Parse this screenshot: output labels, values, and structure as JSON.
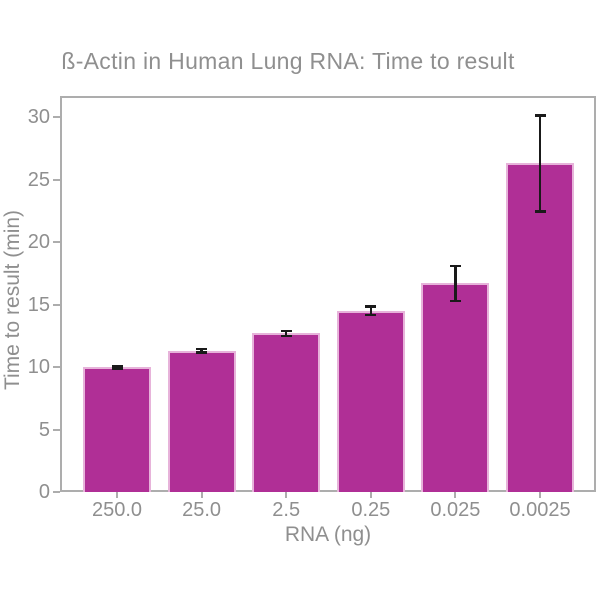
{
  "chart_data": {
    "type": "bar",
    "title": "ß-Actin in Human Lung RNA: Time to result",
    "xlabel": "RNA (ng)",
    "ylabel": "Time to result (min)",
    "categories": [
      "250.0",
      "25.0",
      "2.5",
      "0.25",
      "0.025",
      "0.0025"
    ],
    "values": [
      10.0,
      11.3,
      12.7,
      14.5,
      16.7,
      26.3
    ],
    "errors": [
      0.1,
      0.15,
      0.2,
      0.35,
      1.4,
      3.85
    ],
    "yticks": [
      0,
      5,
      10,
      15,
      20,
      25,
      30
    ],
    "ylim": [
      0,
      31.7
    ],
    "grid": false,
    "legend": "none",
    "colors": {
      "bar": "#b02f96",
      "bar_edge": "#e7b3da",
      "error": "#1a1a1a",
      "axis": "#adadad",
      "text": "#8f8f8f"
    }
  }
}
